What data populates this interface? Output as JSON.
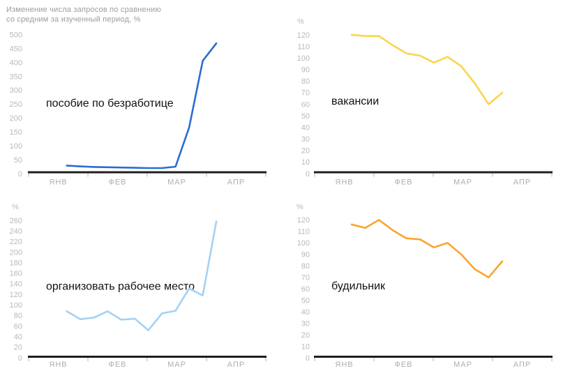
{
  "header": {
    "line1": "Изменение числа запросов по сравнению",
    "line2": "со средним за изученный период, %"
  },
  "chart_data": [
    {
      "type": "line",
      "title": "пособие по безработице",
      "unit_label": "",
      "color": "#2b6cd3",
      "x_labels": [
        "ЯНВ",
        "ФЕВ",
        "МАР",
        "АПР"
      ],
      "y_ticks": [
        0,
        50,
        100,
        150,
        200,
        250,
        300,
        350,
        400,
        450,
        500
      ],
      "ylim": [
        0,
        500
      ],
      "values": [
        29,
        26,
        24,
        23,
        22,
        21,
        20,
        20,
        25,
        166,
        406,
        469
      ]
    },
    {
      "type": "line",
      "title": "вакансии",
      "unit_label": "%",
      "color": "#fcd44e",
      "x_labels": [
        "ЯНВ",
        "ФЕВ",
        "МАР",
        "АПР"
      ],
      "y_ticks": [
        0,
        10,
        20,
        30,
        40,
        50,
        60,
        70,
        80,
        90,
        100,
        110,
        120
      ],
      "ylim": [
        0,
        120
      ],
      "values": [
        120,
        119,
        119,
        111,
        104,
        102,
        96,
        101,
        93,
        78,
        60,
        70
      ]
    },
    {
      "type": "line",
      "title": "организовать рабочее место",
      "unit_label": "%",
      "color": "#a3d2f4",
      "x_labels": [
        "ЯНВ",
        "ФЕВ",
        "МАР",
        "АПР"
      ],
      "y_ticks": [
        0,
        20,
        40,
        60,
        80,
        100,
        120,
        140,
        160,
        180,
        200,
        220,
        240,
        260
      ],
      "ylim": [
        0,
        260
      ],
      "values": [
        88,
        73,
        76,
        88,
        72,
        74,
        52,
        84,
        89,
        131,
        118,
        258
      ]
    },
    {
      "type": "line",
      "title": "будильник",
      "unit_label": "%",
      "color": "#fba42d",
      "x_labels": [
        "ЯНВ",
        "ФЕВ",
        "МАР",
        "АПР"
      ],
      "y_ticks": [
        0,
        10,
        20,
        30,
        40,
        50,
        60,
        70,
        80,
        90,
        100,
        110,
        120
      ],
      "ylim": [
        0,
        120
      ],
      "values": [
        116,
        113,
        120,
        111,
        104,
        103,
        96,
        100,
        90,
        77,
        70,
        84
      ]
    }
  ]
}
